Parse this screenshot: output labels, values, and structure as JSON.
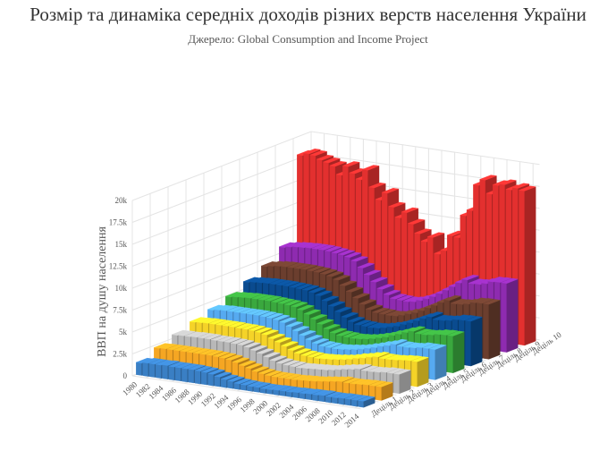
{
  "title": "Розмір та динаміка середніх доходів різних верств населення України",
  "subtitle": "Джерело: Global Consumption and Income Project",
  "chart_data": {
    "type": "bar3d",
    "ylabel": "ВВП на душу населення",
    "ylim": [
      0,
      20000
    ],
    "y_ticks": [
      "0",
      "2.5k",
      "5k",
      "7.5k",
      "10k",
      "12.5k",
      "15k",
      "17.5k",
      "20k"
    ],
    "x_tick_labels": [
      "1980",
      "1982",
      "1984",
      "1986",
      "1988",
      "1990",
      "1992",
      "1994",
      "1996",
      "1998",
      "2000",
      "2002",
      "2004",
      "2006",
      "2008",
      "2010",
      "2012",
      "2014"
    ],
    "years": [
      1980,
      1981,
      1982,
      1983,
      1984,
      1985,
      1986,
      1987,
      1988,
      1989,
      1990,
      1991,
      1992,
      1993,
      1994,
      1995,
      1996,
      1997,
      1998,
      1999,
      2000,
      2001,
      2002,
      2003,
      2004,
      2005,
      2006,
      2007,
      2008,
      2009,
      2010,
      2011,
      2012,
      2013,
      2014
    ],
    "grid": true,
    "series": [
      {
        "name": "Децiль 1",
        "color": "#3a7fc4",
        "values": [
          1400,
          1500,
          1500,
          1500,
          1550,
          1500,
          1500,
          1500,
          1500,
          1450,
          1400,
          1300,
          1100,
          900,
          800,
          650,
          600,
          550,
          550,
          500,
          500,
          550,
          550,
          550,
          600,
          600,
          650,
          650,
          700,
          650,
          650,
          700,
          700,
          700,
          700
        ]
      },
      {
        "name": "Децiль 2",
        "color": "#f5a623",
        "values": [
          2300,
          2350,
          2350,
          2350,
          2350,
          2350,
          2350,
          2350,
          2350,
          2300,
          2250,
          2150,
          1950,
          1700,
          1500,
          1250,
          1100,
          1000,
          950,
          950,
          950,
          950,
          1000,
          1050,
          1100,
          1200,
          1300,
          1400,
          1500,
          1450,
          1450,
          1500,
          1550,
          1550,
          1550
        ]
      },
      {
        "name": "Децiль 3",
        "color": "#b8b8b8",
        "values": [
          3000,
          3050,
          3050,
          3100,
          3100,
          3100,
          3050,
          3050,
          3050,
          3000,
          2950,
          2800,
          2550,
          2300,
          2000,
          1700,
          1500,
          1400,
          1350,
          1300,
          1350,
          1400,
          1450,
          1500,
          1600,
          1750,
          1900,
          2000,
          2150,
          2050,
          2050,
          2100,
          2200,
          2200,
          2200
        ]
      },
      {
        "name": "Децiль 4",
        "color": "#f5d328",
        "values": [
          3700,
          3750,
          3800,
          3800,
          3800,
          3800,
          3800,
          3750,
          3750,
          3700,
          3600,
          3450,
          3100,
          2800,
          2450,
          2100,
          1850,
          1700,
          1650,
          1600,
          1650,
          1700,
          1800,
          1900,
          2050,
          2250,
          2400,
          2600,
          2750,
          2650,
          2650,
          2700,
          2800,
          2850,
          2850
        ]
      },
      {
        "name": "Децiль 5",
        "color": "#56aaf0",
        "values": [
          4300,
          4400,
          4450,
          4450,
          4450,
          4450,
          4450,
          4450,
          4400,
          4350,
          4250,
          4050,
          3700,
          3300,
          2900,
          2500,
          2200,
          2000,
          1950,
          1900,
          1950,
          2050,
          2150,
          2300,
          2500,
          2700,
          2950,
          3150,
          3400,
          3250,
          3250,
          3300,
          3450,
          3450,
          3450
        ]
      },
      {
        "name": "Децiль 6",
        "color": "#3aa83e",
        "values": [
          5000,
          5100,
          5150,
          5200,
          5200,
          5200,
          5200,
          5150,
          5100,
          5050,
          4950,
          4700,
          4300,
          3850,
          3400,
          2950,
          2600,
          2400,
          2350,
          2300,
          2350,
          2450,
          2600,
          2800,
          3000,
          3300,
          3550,
          3850,
          4100,
          3900,
          3900,
          4000,
          4150,
          4200,
          4200
        ]
      },
      {
        "name": "Децiль 7",
        "color": "#0a4b8f",
        "values": [
          5900,
          6000,
          6050,
          6100,
          6100,
          6100,
          6100,
          6050,
          6000,
          5950,
          5800,
          5550,
          5050,
          4550,
          4000,
          3500,
          3100,
          2850,
          2800,
          2750,
          2800,
          2950,
          3150,
          3350,
          3650,
          3950,
          4300,
          4650,
          4950,
          4700,
          4750,
          4850,
          5050,
          5100,
          5100
        ]
      },
      {
        "name": "Децiль 8",
        "color": "#6b3e2e",
        "values": [
          6900,
          7050,
          7150,
          7200,
          7200,
          7200,
          7200,
          7150,
          7100,
          7000,
          6850,
          6550,
          6000,
          5400,
          4800,
          4200,
          3700,
          3450,
          3400,
          3350,
          3400,
          3600,
          3850,
          4100,
          4450,
          4850,
          5250,
          5700,
          6050,
          5750,
          5800,
          5950,
          6200,
          6250,
          6250
        ]
      },
      {
        "name": "Децiль 9",
        "color": "#8e2bb0",
        "values": [
          8300,
          8450,
          8550,
          8600,
          8650,
          8650,
          8650,
          8600,
          8500,
          8400,
          8250,
          7900,
          7250,
          6550,
          5850,
          5150,
          4600,
          4250,
          4200,
          4150,
          4250,
          4500,
          4800,
          5150,
          5600,
          6100,
          6600,
          7150,
          7600,
          7250,
          7300,
          7500,
          7800,
          7850,
          7850
        ]
      },
      {
        "name": "Децiль 10",
        "color": "#e3302f",
        "values": [
          18000,
          18300,
          18200,
          17800,
          17600,
          17300,
          16400,
          17500,
          16800,
          16200,
          17400,
          15500,
          14200,
          15100,
          13600,
          12500,
          13200,
          12000,
          11000,
          10200,
          10800,
          9000,
          9500,
          11300,
          11200,
          13800,
          14500,
          17500,
          18200,
          16700,
          17800,
          18000,
          17500,
          17800,
          17600
        ]
      }
    ]
  }
}
